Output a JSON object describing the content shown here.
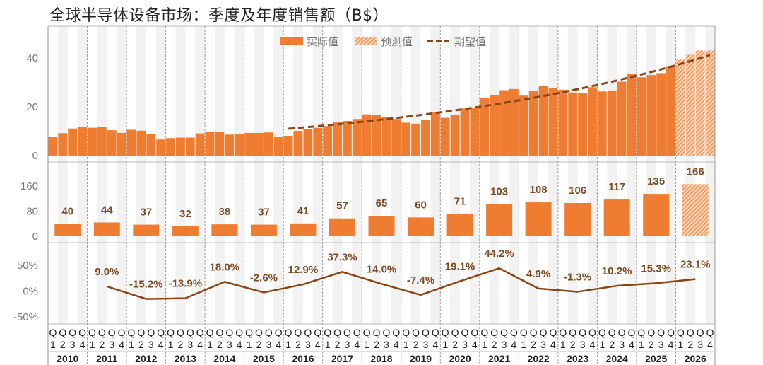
{
  "title": "全球半导体设备市场：季度及年度销售额（B$）",
  "colors": {
    "actual": "#ee7d31",
    "forecast_hatch": "#f5b48a",
    "expected": "#8b4513",
    "growth_line": "#8b4513",
    "label": "#7a4a22",
    "stripe": "#f2f2f2",
    "axis_text": "#777777"
  },
  "chart_data": [
    {
      "type": "bar",
      "panel": "quarterly",
      "years": [
        "2010",
        "2011",
        "2012",
        "2013",
        "2014",
        "2015",
        "2016",
        "2017",
        "2018",
        "2019",
        "2020",
        "2021",
        "2022",
        "2023",
        "2024",
        "2025",
        "2026"
      ],
      "quarter_labels": [
        "Q1",
        "Q2",
        "Q3",
        "Q4"
      ],
      "yticks": [
        "0",
        "20",
        "40"
      ],
      "ylim": [
        0,
        53
      ],
      "legend": {
        "actual": "实际值",
        "forecast": "预测值",
        "expected": "期望值",
        "placement": "top-center"
      },
      "actual_values": [
        7.7,
        9.2,
        11.1,
        11.8,
        11.4,
        11.8,
        10.4,
        9.3,
        10.6,
        10.2,
        8.9,
        6.6,
        7.2,
        7.4,
        7.4,
        9.1,
        9.9,
        9.6,
        8.6,
        8.8,
        9.3,
        9.3,
        9.5,
        7.7,
        8.1,
        10.1,
        10.8,
        11.4,
        12.1,
        13.7,
        14.2,
        15.0,
        16.9,
        16.6,
        15.7,
        15.0,
        13.5,
        13.1,
        14.8,
        17.9,
        15.5,
        16.6,
        19.3,
        19.6,
        23.5,
        24.8,
        26.8,
        27.3,
        24.6,
        26.4,
        28.7,
        27.6,
        27.0,
        25.9,
        25.5,
        28.0,
        26.3,
        26.7,
        30.3,
        33.6,
        32.1,
        33.0,
        33.8,
        36.4
      ],
      "forecast_values": [
        39.3,
        41.4,
        43.1,
        43.1
      ],
      "expected_line": {
        "start": "2016 Q1",
        "end": "2026 Q4",
        "start_value": 11.0,
        "end_value": 41.2,
        "shape": "exponential"
      }
    },
    {
      "type": "bar",
      "panel": "annual",
      "yticks": [
        "0",
        "80",
        "160"
      ],
      "ylim": [
        0,
        230
      ],
      "values": [
        40,
        44,
        37,
        32,
        38,
        37,
        41,
        57,
        65,
        60,
        71,
        103,
        108,
        106,
        117,
        135,
        166
      ],
      "labels": [
        "40",
        "44",
        "37",
        "32",
        "38",
        "37",
        "41",
        "57",
        "65",
        "60",
        "71",
        "103",
        "108",
        "106",
        "117",
        "135",
        "166"
      ],
      "forecast_years": [
        "2026"
      ]
    },
    {
      "type": "line",
      "panel": "growth",
      "yticks": [
        "50%",
        "0%",
        "-50%"
      ],
      "ylim": [
        -60,
        62
      ],
      "years": [
        "2011",
        "2012",
        "2013",
        "2014",
        "2015",
        "2016",
        "2017",
        "2018",
        "2019",
        "2020",
        "2021",
        "2022",
        "2023",
        "2024",
        "2025",
        "2026"
      ],
      "values": [
        9.0,
        -15.2,
        -13.9,
        18.0,
        -2.6,
        12.9,
        37.3,
        14.0,
        -7.4,
        19.1,
        44.2,
        4.9,
        -1.3,
        10.2,
        15.3,
        23.1
      ],
      "labels": [
        "9.0%",
        "-15.2%",
        "-13.9%",
        "18.0%",
        "-2.6%",
        "12.9%",
        "37.3%",
        "14.0%",
        "-7.4%",
        "19.1%",
        "44.2%",
        "4.9%",
        "-1.3%",
        "10.2%",
        "15.3%",
        "23.1%"
      ]
    }
  ]
}
